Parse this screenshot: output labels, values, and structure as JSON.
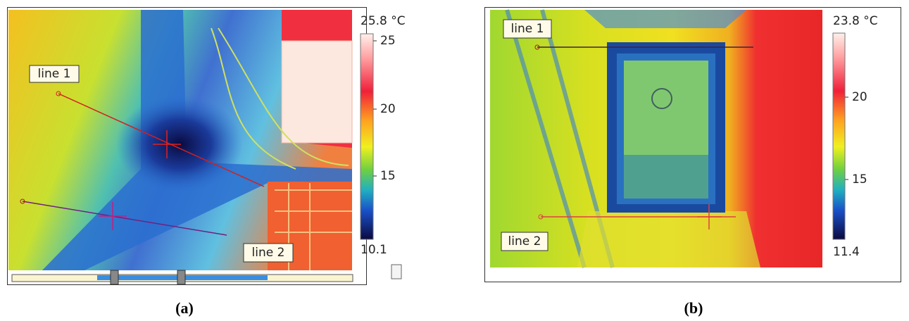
{
  "panels": [
    {
      "caption": "(a)",
      "colorbar": {
        "max_label": "25.8 °C",
        "min_label": "10.1",
        "ticks": [
          "25",
          "20",
          "15"
        ]
      },
      "lines": [
        "line 1",
        "line 2"
      ]
    },
    {
      "caption": "(b)",
      "colorbar": {
        "max_label": "23.8 °C",
        "min_label": "11.4",
        "ticks": [
          "20",
          "15"
        ]
      },
      "lines": [
        "line 1",
        "line 2"
      ]
    }
  ]
}
